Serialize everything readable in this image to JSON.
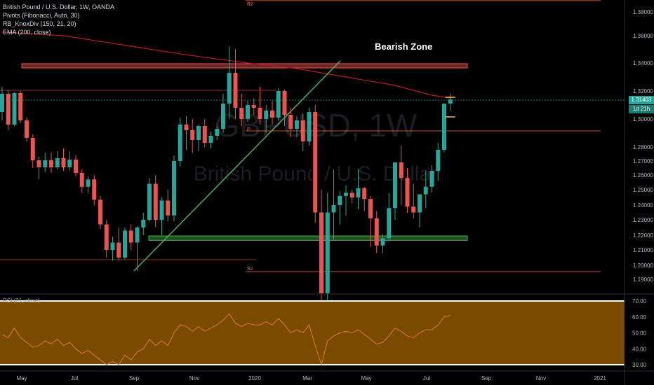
{
  "legend": {
    "title": "British Pound / U.S. Dollar, 1W, OANDA",
    "pivots": "Pivots (Fibonacci, Auto, 30)",
    "knoxdiv": "RB_KnoxDiv (150, 21, 20)",
    "ema": "EMA (200, close)"
  },
  "rsi_label": "RSI (21, close)",
  "annotation": "Bearish Zone",
  "watermark": {
    "symbol": "GBPUSD, 1W",
    "name": "British Pound / U.S. Dollar"
  },
  "last_price": "1.31403",
  "time_to_close": "1d 21h",
  "colors": {
    "up": "#26a69a",
    "down": "#ef5350",
    "ema": "#b71c1c",
    "trend": "#4caf50",
    "zone_red": "#ef5350",
    "zone_green": "#4caf50",
    "rsi_bg": "#7a4a00",
    "pivot": "#ff7043",
    "dotted": "#26a69a"
  },
  "chart_data": {
    "type": "candlestick",
    "price_axis": {
      "ticks": [
        "1.38000",
        "1.36000",
        "1.34000",
        "1.32000",
        "1.30000",
        "1.28000",
        "1.27000",
        "1.26000",
        "1.25000",
        "1.24000",
        "1.23000",
        "1.22000",
        "1.21000",
        "1.20000",
        "1.19000"
      ]
    },
    "time_axis": {
      "ticks": [
        "May",
        "Jul",
        "Sep",
        "Nov",
        "2020",
        "Mar",
        "May",
        "Jul",
        "Sep",
        "Nov",
        "2021"
      ]
    },
    "rsi_axis": {
      "ticks": [
        "70.00",
        "60.00",
        "50.00",
        "40.00",
        "30.00"
      ],
      "levels": [
        70,
        30
      ]
    },
    "pivots": [
      {
        "label": "R2",
        "value": 1.3895
      },
      {
        "label": "P",
        "value": 1.2915
      },
      {
        "label": "S2",
        "value": 1.1955
      }
    ],
    "zones": [
      {
        "label": "Bearish Zone",
        "from": 1.3365,
        "to": 1.3395
      },
      {
        "from": 1.2165,
        "to": 1.2195
      }
    ],
    "candles": [
      {
        "o": 1.305,
        "h": 1.323,
        "l": 1.299,
        "c": 1.318
      },
      {
        "o": 1.318,
        "h": 1.321,
        "l": 1.292,
        "c": 1.296
      },
      {
        "o": 1.296,
        "h": 1.319,
        "l": 1.295,
        "c": 1.3185
      },
      {
        "o": 1.3185,
        "h": 1.32,
        "l": 1.297,
        "c": 1.299
      },
      {
        "o": 1.299,
        "h": 1.301,
        "l": 1.284,
        "c": 1.2865
      },
      {
        "o": 1.2865,
        "h": 1.289,
        "l": 1.265,
        "c": 1.2705
      },
      {
        "o": 1.2705,
        "h": 1.273,
        "l": 1.257,
        "c": 1.2655
      },
      {
        "o": 1.2655,
        "h": 1.276,
        "l": 1.262,
        "c": 1.2705
      },
      {
        "o": 1.2705,
        "h": 1.276,
        "l": 1.2615,
        "c": 1.2655
      },
      {
        "o": 1.2655,
        "h": 1.277,
        "l": 1.264,
        "c": 1.272
      },
      {
        "o": 1.272,
        "h": 1.279,
        "l": 1.263,
        "c": 1.2655
      },
      {
        "o": 1.2655,
        "h": 1.277,
        "l": 1.263,
        "c": 1.271
      },
      {
        "o": 1.271,
        "h": 1.274,
        "l": 1.259,
        "c": 1.2615
      },
      {
        "o": 1.2615,
        "h": 1.264,
        "l": 1.248,
        "c": 1.252
      },
      {
        "o": 1.252,
        "h": 1.259,
        "l": 1.248,
        "c": 1.257
      },
      {
        "o": 1.257,
        "h": 1.26,
        "l": 1.24,
        "c": 1.2435
      },
      {
        "o": 1.2435,
        "h": 1.246,
        "l": 1.224,
        "c": 1.227
      },
      {
        "o": 1.227,
        "h": 1.23,
        "l": 1.205,
        "c": 1.21
      },
      {
        "o": 1.21,
        "h": 1.219,
        "l": 1.203,
        "c": 1.215
      },
      {
        "o": 1.215,
        "h": 1.225,
        "l": 1.203,
        "c": 1.205
      },
      {
        "o": 1.205,
        "h": 1.225,
        "l": 1.204,
        "c": 1.223
      },
      {
        "o": 1.223,
        "h": 1.227,
        "l": 1.21,
        "c": 1.215
      },
      {
        "o": 1.215,
        "h": 1.226,
        "l": 1.196,
        "c": 1.225
      },
      {
        "o": 1.225,
        "h": 1.235,
        "l": 1.22,
        "c": 1.23
      },
      {
        "o": 1.23,
        "h": 1.258,
        "l": 1.229,
        "c": 1.254
      },
      {
        "o": 1.254,
        "h": 1.26,
        "l": 1.225,
        "c": 1.23
      },
      {
        "o": 1.23,
        "h": 1.245,
        "l": 1.22,
        "c": 1.243
      },
      {
        "o": 1.243,
        "h": 1.25,
        "l": 1.229,
        "c": 1.233
      },
      {
        "o": 1.233,
        "h": 1.274,
        "l": 1.229,
        "c": 1.27
      },
      {
        "o": 1.27,
        "h": 1.301,
        "l": 1.266,
        "c": 1.296
      },
      {
        "o": 1.296,
        "h": 1.302,
        "l": 1.278,
        "c": 1.292
      },
      {
        "o": 1.292,
        "h": 1.3,
        "l": 1.276,
        "c": 1.285
      },
      {
        "o": 1.285,
        "h": 1.296,
        "l": 1.277,
        "c": 1.295
      },
      {
        "o": 1.295,
        "h": 1.3,
        "l": 1.28,
        "c": 1.283
      },
      {
        "o": 1.283,
        "h": 1.291,
        "l": 1.279,
        "c": 1.288
      },
      {
        "o": 1.288,
        "h": 1.295,
        "l": 1.285,
        "c": 1.293
      },
      {
        "o": 1.293,
        "h": 1.318,
        "l": 1.29,
        "c": 1.311
      },
      {
        "o": 1.311,
        "h": 1.352,
        "l": 1.3,
        "c": 1.333
      },
      {
        "o": 1.333,
        "h": 1.35,
        "l": 1.3,
        "c": 1.308
      },
      {
        "o": 1.308,
        "h": 1.318,
        "l": 1.295,
        "c": 1.3
      },
      {
        "o": 1.3,
        "h": 1.313,
        "l": 1.298,
        "c": 1.31
      },
      {
        "o": 1.31,
        "h": 1.315,
        "l": 1.303,
        "c": 1.308
      },
      {
        "o": 1.308,
        "h": 1.323,
        "l": 1.296,
        "c": 1.3
      },
      {
        "o": 1.3,
        "h": 1.31,
        "l": 1.29,
        "c": 1.306
      },
      {
        "o": 1.306,
        "h": 1.313,
        "l": 1.296,
        "c": 1.301
      },
      {
        "o": 1.301,
        "h": 1.322,
        "l": 1.299,
        "c": 1.32
      },
      {
        "o": 1.32,
        "h": 1.321,
        "l": 1.295,
        "c": 1.303
      },
      {
        "o": 1.303,
        "h": 1.308,
        "l": 1.287,
        "c": 1.293
      },
      {
        "o": 1.293,
        "h": 1.302,
        "l": 1.287,
        "c": 1.299
      },
      {
        "o": 1.299,
        "h": 1.304,
        "l": 1.277,
        "c": 1.284
      },
      {
        "o": 1.284,
        "h": 1.308,
        "l": 1.281,
        "c": 1.305
      },
      {
        "o": 1.305,
        "h": 1.31,
        "l": 1.228,
        "c": 1.235
      },
      {
        "o": 1.235,
        "h": 1.25,
        "l": 1.141,
        "c": 1.18
      },
      {
        "o": 1.18,
        "h": 1.248,
        "l": 1.17,
        "c": 1.235
      },
      {
        "o": 1.235,
        "h": 1.264,
        "l": 1.217,
        "c": 1.24
      },
      {
        "o": 1.24,
        "h": 1.249,
        "l": 1.227,
        "c": 1.246
      },
      {
        "o": 1.246,
        "h": 1.253,
        "l": 1.233,
        "c": 1.248
      },
      {
        "o": 1.248,
        "h": 1.25,
        "l": 1.241,
        "c": 1.245
      },
      {
        "o": 1.245,
        "h": 1.264,
        "l": 1.237,
        "c": 1.251
      },
      {
        "o": 1.251,
        "h": 1.252,
        "l": 1.236,
        "c": 1.244
      },
      {
        "o": 1.244,
        "h": 1.246,
        "l": 1.212,
        "c": 1.231
      },
      {
        "o": 1.231,
        "h": 1.236,
        "l": 1.208,
        "c": 1.213
      },
      {
        "o": 1.213,
        "h": 1.221,
        "l": 1.208,
        "c": 1.218
      },
      {
        "o": 1.218,
        "h": 1.248,
        "l": 1.216,
        "c": 1.238
      },
      {
        "o": 1.238,
        "h": 1.269,
        "l": 1.23,
        "c": 1.269
      },
      {
        "o": 1.269,
        "h": 1.281,
        "l": 1.24,
        "c": 1.258
      },
      {
        "o": 1.258,
        "h": 1.265,
        "l": 1.235,
        "c": 1.239
      },
      {
        "o": 1.239,
        "h": 1.254,
        "l": 1.231,
        "c": 1.235
      },
      {
        "o": 1.235,
        "h": 1.247,
        "l": 1.225,
        "c": 1.247
      },
      {
        "o": 1.247,
        "h": 1.263,
        "l": 1.238,
        "c": 1.252
      },
      {
        "o": 1.252,
        "h": 1.267,
        "l": 1.248,
        "c": 1.263
      },
      {
        "o": 1.263,
        "h": 1.283,
        "l": 1.256,
        "c": 1.278
      },
      {
        "o": 1.278,
        "h": 1.311,
        "l": 1.276,
        "c": 1.311
      },
      {
        "o": 1.311,
        "h": 1.318,
        "l": 1.306,
        "c": 1.314
      }
    ],
    "ema200": [
      [
        0,
        1.363
      ],
      [
        10,
        1.36
      ],
      [
        20,
        1.353
      ],
      [
        30,
        1.346
      ],
      [
        40,
        1.34
      ],
      [
        48,
        1.336
      ],
      [
        56,
        1.33
      ],
      [
        64,
        1.324
      ],
      [
        70,
        1.317
      ],
      [
        73,
        1.315
      ]
    ],
    "rsi": [
      49,
      47,
      53,
      47,
      44,
      41,
      42,
      45,
      43,
      46,
      42,
      44,
      40,
      37,
      39,
      36,
      33,
      30,
      32,
      30,
      36,
      33,
      38,
      40,
      46,
      42,
      45,
      42,
      50,
      55,
      54,
      51,
      54,
      51,
      53,
      55,
      58,
      62,
      56,
      54,
      56,
      55,
      55,
      57,
      55,
      59,
      55,
      50,
      52,
      50,
      55,
      42,
      30,
      45,
      48,
      50,
      51,
      50,
      52,
      49,
      46,
      43,
      44,
      48,
      53,
      51,
      48,
      47,
      50,
      52,
      52,
      55,
      60,
      61
    ]
  }
}
